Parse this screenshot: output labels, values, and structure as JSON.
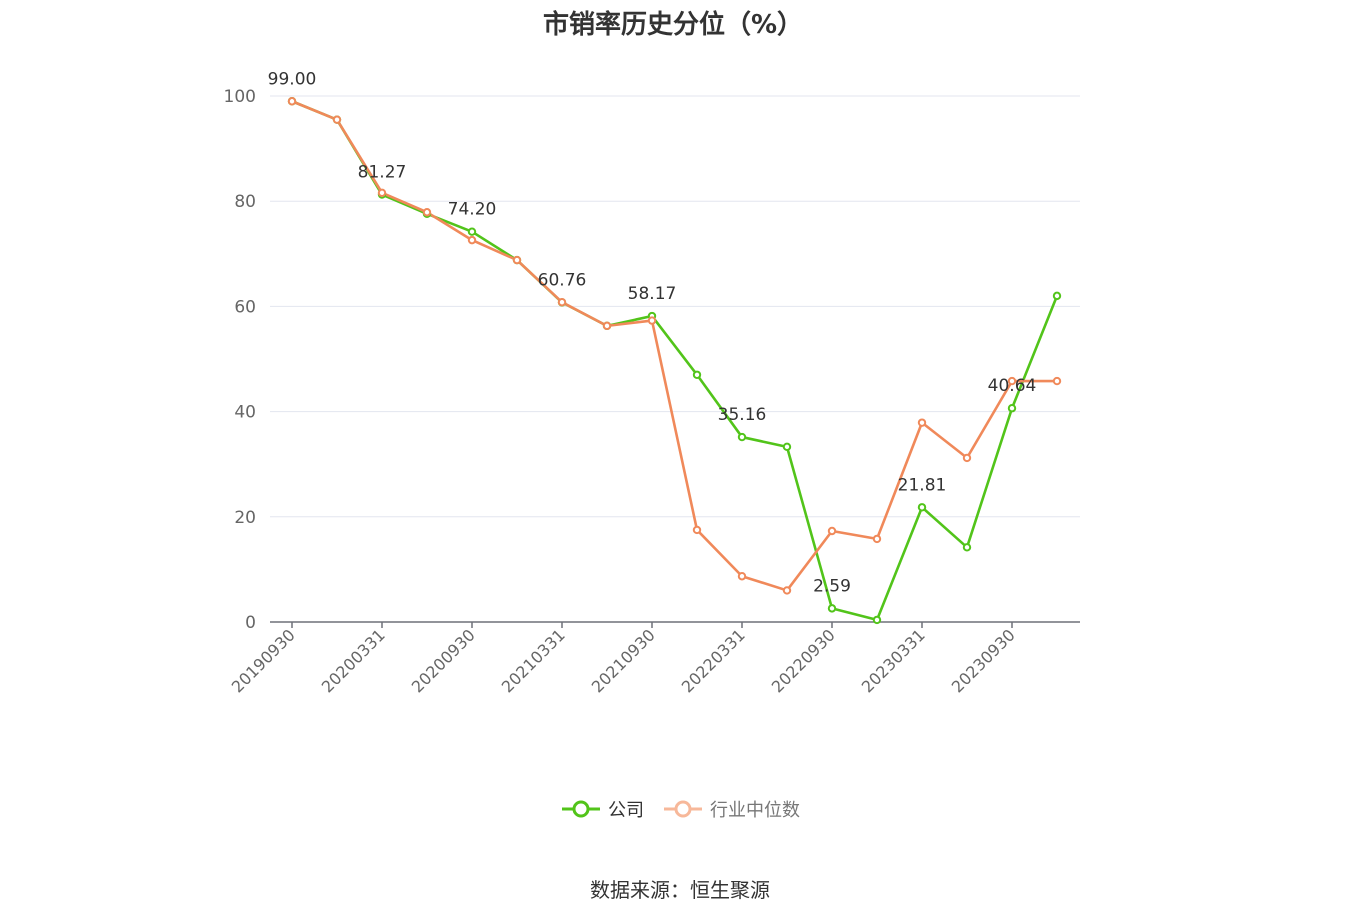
{
  "title": "市销率历史分位（%）",
  "source": "数据来源：恒生聚源",
  "chart_data": {
    "type": "line",
    "x": [
      "20190930",
      "20191231",
      "20200331",
      "20200630",
      "20200930",
      "20201231",
      "20210331",
      "20210630",
      "20210930",
      "20211231",
      "20220331",
      "20220630",
      "20220930",
      "20221231",
      "20230331",
      "20230630",
      "20230930",
      "20231231"
    ],
    "x_tick_labels": [
      "20190930",
      "20200331",
      "20200930",
      "20210331",
      "20210930",
      "20220331",
      "20220930",
      "20230331",
      "20230930"
    ],
    "ylim": [
      0,
      100
    ],
    "y_ticks": [
      0,
      20,
      40,
      60,
      80,
      100
    ],
    "grid": true,
    "legend_position": "bottom",
    "series": [
      {
        "name": "公司",
        "color": "#52c41a",
        "values": [
          99.0,
          95.5,
          81.27,
          77.6,
          74.2,
          68.8,
          60.76,
          56.3,
          58.17,
          47.0,
          35.16,
          33.3,
          2.59,
          0.4,
          21.81,
          14.2,
          40.64,
          62.0
        ],
        "labels": [
          "99.00",
          "",
          "81.27",
          "",
          "74.20",
          "",
          "60.76",
          "",
          "58.17",
          "",
          "35.16",
          "",
          "2.59",
          "",
          "21.81",
          "",
          "40.64",
          ""
        ]
      },
      {
        "name": "行业中位数",
        "color": "#f0895a",
        "values": [
          99.0,
          95.5,
          81.6,
          77.9,
          72.6,
          68.8,
          60.8,
          56.3,
          57.3,
          17.5,
          8.7,
          6.0,
          17.3,
          15.8,
          37.9,
          31.2,
          45.8,
          45.8
        ],
        "labels": []
      }
    ]
  }
}
